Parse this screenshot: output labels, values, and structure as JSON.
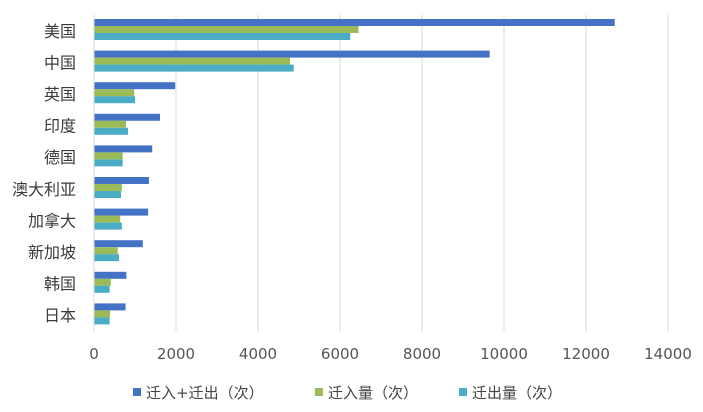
{
  "chart_data": {
    "type": "bar",
    "orientation": "horizontal",
    "categories": [
      "美国",
      "中国",
      "英国",
      "印度",
      "德国",
      "澳大利亚",
      "加拿大",
      "新加坡",
      "韩国",
      "日本"
    ],
    "series": [
      {
        "name": "迁入+迁出（次）",
        "color": "#4472C4",
        "values": [
          12700,
          9650,
          1980,
          1610,
          1420,
          1340,
          1320,
          1190,
          790,
          770
        ]
      },
      {
        "name": "迁入量（次）",
        "color": "#9BBB59",
        "values": [
          6450,
          4780,
          980,
          780,
          700,
          680,
          640,
          580,
          410,
          390
        ]
      },
      {
        "name": "迁出量（次）",
        "color": "#4BACC6",
        "values": [
          6250,
          4870,
          1000,
          830,
          700,
          660,
          680,
          610,
          380,
          380
        ]
      }
    ],
    "xlim": [
      0,
      14000
    ],
    "xticks": [
      0,
      2000,
      4000,
      6000,
      8000,
      10000,
      12000,
      14000
    ],
    "grid": "vertical",
    "legend": "bottom",
    "title": "",
    "xlabel": "",
    "ylabel": ""
  }
}
